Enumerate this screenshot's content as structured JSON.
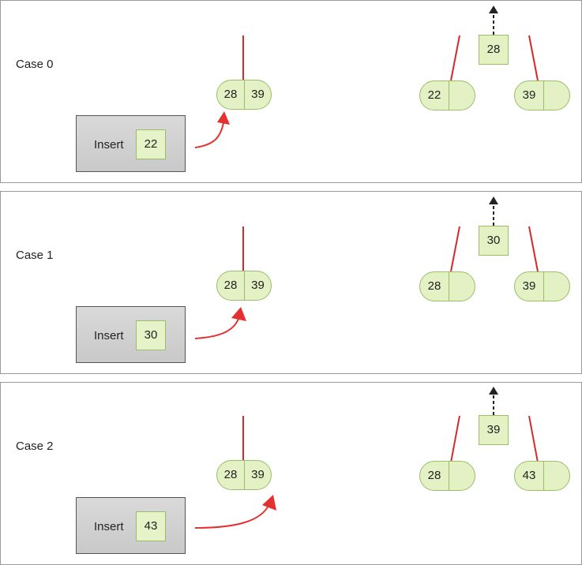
{
  "cases": [
    {
      "label": "Case 0",
      "insert_label": "Insert",
      "insert_value": "22",
      "node_keys": [
        "28",
        "39"
      ],
      "promoted": "28",
      "left_child": "22",
      "right_child": "39"
    },
    {
      "label": "Case 1",
      "insert_label": "Insert",
      "insert_value": "30",
      "node_keys": [
        "28",
        "39"
      ],
      "promoted": "30",
      "left_child": "28",
      "right_child": "39"
    },
    {
      "label": "Case 2",
      "insert_label": "Insert",
      "insert_value": "43",
      "node_keys": [
        "28",
        "39"
      ],
      "promoted": "39",
      "left_child": "28",
      "right_child": "43"
    }
  ],
  "colors": {
    "node_fill": "#e3f1c4",
    "node_border": "#9bbd6a",
    "link_red": "#d42a2a",
    "arrow_red": "#e53030",
    "promote_arrow": "#222222",
    "insert_box_fill": "#d3d3d3"
  }
}
